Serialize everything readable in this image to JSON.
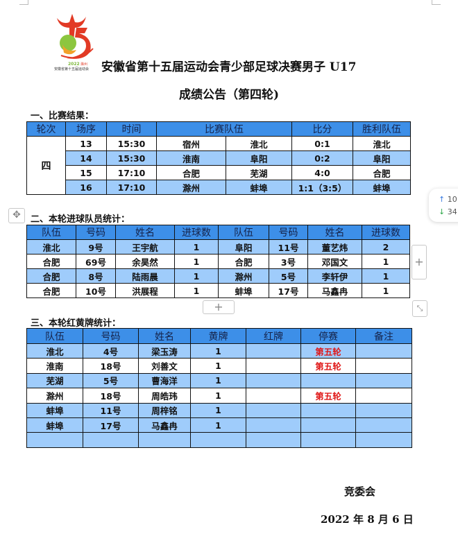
{
  "header": {
    "logo_text": "2022 滁州 安徽省第十五届运动会",
    "title_line1": "安徽省第十五届运动会青少部足球决赛男子 U17",
    "title_line2": "成绩公告（第四轮)"
  },
  "results": {
    "section_title": "一、比赛结果：",
    "columns": [
      "轮次",
      "场序",
      "时间",
      "比赛队伍",
      "比分",
      "胜利队伍"
    ],
    "round": "四",
    "rows": [
      {
        "match": "13",
        "time": "15:30",
        "home": "宿州",
        "away": "淮北",
        "score": "0:1",
        "winner": "淮北"
      },
      {
        "match": "14",
        "time": "15:30",
        "home": "淮南",
        "away": "阜阳",
        "score": "0:2",
        "winner": "阜阳"
      },
      {
        "match": "15",
        "time": "17:10",
        "home": "合肥",
        "away": "芜湖",
        "score": "4:0",
        "winner": "合肥"
      },
      {
        "match": "16",
        "time": "17:10",
        "home": "滁州",
        "away": "蚌埠",
        "score": "1:1（3:5）",
        "winner": "蚌埠"
      }
    ]
  },
  "scorers": {
    "section_title": "二、本轮进球队员统计：",
    "columns": [
      "队伍",
      "号码",
      "姓名",
      "进球数",
      "队伍",
      "号码",
      "姓名",
      "进球数"
    ],
    "rows": [
      [
        "淮北",
        "9号",
        "王宇航",
        "1",
        "阜阳",
        "11号",
        "董艺炜",
        "2"
      ],
      [
        "合肥",
        "69号",
        "余昊然",
        "1",
        "合肥",
        "3号",
        "邓国文",
        "1"
      ],
      [
        "合肥",
        "8号",
        "陆雨晨",
        "1",
        "滁州",
        "5号",
        "李轩伊",
        "1"
      ],
      [
        "合肥",
        "10号",
        "洪展程",
        "1",
        "蚌埠",
        "17号",
        "马鑫冉",
        "1"
      ]
    ]
  },
  "cards": {
    "section_title": "三、本轮红黄牌统计：",
    "columns": [
      "队伍",
      "号码",
      "姓名",
      "黄牌",
      "红牌",
      "停赛",
      "备注"
    ],
    "rows": [
      [
        "淮北",
        "4号",
        "梁玉涛",
        "1",
        "",
        "第五轮",
        ""
      ],
      [
        "淮南",
        "18号",
        "刘善文",
        "1",
        "",
        "第五轮",
        ""
      ],
      [
        "芜湖",
        "5号",
        "曹海洋",
        "1",
        "",
        "",
        ""
      ],
      [
        "滁州",
        "18号",
        "周皓玮",
        "1",
        "",
        "第五轮",
        ""
      ],
      [
        "蚌埠",
        "11号",
        "周梓铭",
        "1",
        "",
        "",
        ""
      ],
      [
        "蚌埠",
        "17号",
        "马鑫冉",
        "1",
        "",
        "",
        ""
      ],
      [
        "",
        "",
        "",
        "",
        "",
        "",
        ""
      ]
    ],
    "suspension_color": "#e01818"
  },
  "footer": {
    "organizer": "竞委会",
    "date": "2022 年 8 月 6 日"
  },
  "editor": {
    "add_row_label": "+",
    "add_col_label": "+",
    "up_count": "10",
    "down_count": "34"
  },
  "colors": {
    "header_blue": "#3d8fe8",
    "row_light_blue": "#9fccfb"
  }
}
